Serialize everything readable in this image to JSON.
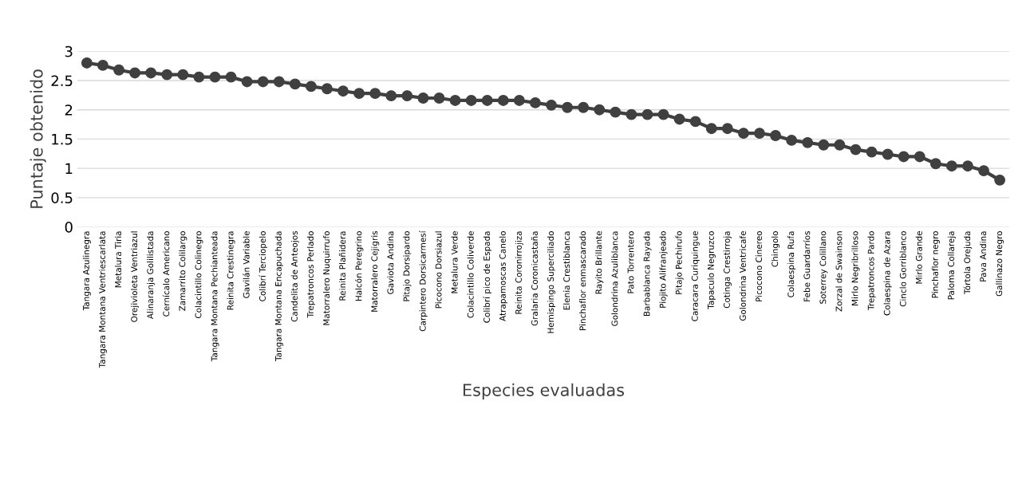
{
  "chart_data": {
    "type": "line",
    "xlabel": "Especies evaluadas",
    "ylabel": "Puntaje obtenido",
    "categories": [
      "Tangara Azulinegra",
      "Tangara Montana Ventriescarlata",
      "Metalura Tiria",
      "Orejivioleta Ventriazul",
      "Alinaranja Golilistada",
      "Cernícalo Americano",
      "Zamarrito Colilargo",
      "Colacintillo Colinegro",
      "Tangara Montana Pechianteada",
      "Reinita Crestinegra",
      "Gavilán Variable",
      "Colibrí Terciopelo",
      "Tangara Montana Encapuchada",
      "Candelita de Anteojos",
      "Trepatroncos Perlado",
      "Matorralero Nuquirrufo",
      "Reinita Plañidera",
      "Halcón Peregrino",
      "Matorralero Cejigris",
      "Gaviota Andina",
      "Pitajo Dorsipardo",
      "Carpintero Dorsicarmesí",
      "Picocono Dorsiazul",
      "Metalura Verde",
      "Colacintillo Coliverde",
      "Colibrí pico de Espada",
      "Atrapamoscas Canelo",
      "Reinita Coronirrojiza",
      "Gralaria Coronicastaña",
      "Hemispingo Superciliado",
      "Elenia Crestiblanca",
      "Pinchaflor enmascarado",
      "Rayito Brillante",
      "Golondrina Azuliblanca",
      "Pato Torrentero",
      "Barbablanca Rayada",
      "Piojito Alifranjeado",
      "Pitajo Pechirufo",
      "Caracara Curiquingue",
      "Tapaculo Negruzco",
      "Cotinga Crestirroja",
      "Golondrina Ventricafe",
      "Picocono Cinereo",
      "Chingolo",
      "Colaespina Rufa",
      "Febe Guardarríos",
      "Soterrey Colillano",
      "Zorzal de Swainson",
      "Mirlo Negribrilloso",
      "Trepatroncos Pardo",
      "Colaespina de Azara",
      "Cinclo Gorriblanco",
      "Mirlo Grande",
      "Pinchaflor negro",
      "Paloma Collareja",
      "Tórtola Orejuda",
      "Pava Andina",
      "Gallinazo Negro"
    ],
    "values": [
      2.8,
      2.76,
      2.68,
      2.63,
      2.63,
      2.6,
      2.6,
      2.56,
      2.56,
      2.56,
      2.48,
      2.48,
      2.48,
      2.44,
      2.4,
      2.36,
      2.32,
      2.28,
      2.28,
      2.24,
      2.24,
      2.2,
      2.2,
      2.16,
      2.16,
      2.16,
      2.16,
      2.16,
      2.12,
      2.08,
      2.04,
      2.04,
      2.0,
      1.96,
      1.92,
      1.92,
      1.92,
      1.84,
      1.8,
      1.68,
      1.68,
      1.6,
      1.6,
      1.56,
      1.48,
      1.44,
      1.4,
      1.4,
      1.32,
      1.28,
      1.24,
      1.2,
      1.2,
      1.08,
      1.04,
      1.04,
      0.96,
      0.8
    ],
    "color": "#404040",
    "marker": "circle",
    "line_style": "solid",
    "ylim": [
      0,
      3
    ],
    "yticks": [
      0,
      0.5,
      1,
      1.5,
      2,
      2.5,
      3
    ],
    "grid": "y"
  }
}
